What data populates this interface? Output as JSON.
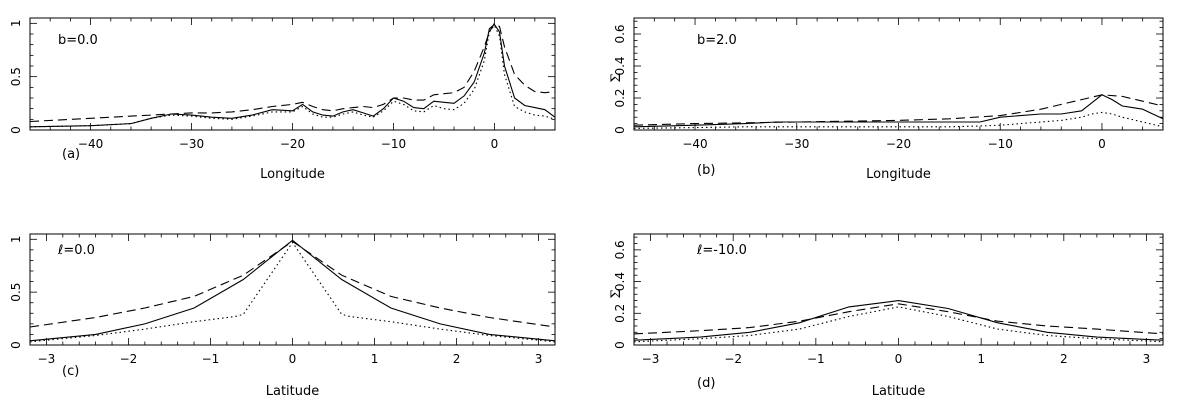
{
  "chart_data": [
    {
      "type": "line",
      "tag": "(a)",
      "param": "b=0.0",
      "xlabel": "Longitude",
      "ylabel": "",
      "xlim": [
        -46,
        6
      ],
      "ylim": [
        0,
        1.05
      ],
      "xticks": [
        -40,
        -30,
        -20,
        -10,
        0
      ],
      "yticks": [
        0,
        0.5,
        1
      ],
      "ytick_labels": [
        "0",
        "0.5",
        "1"
      ],
      "series": [
        {
          "style": "solid",
          "x": [
            -46,
            -40,
            -36,
            -34,
            -32,
            -30,
            -28,
            -26,
            -24,
            -22,
            -20,
            -19,
            -18,
            -17,
            -16,
            -15,
            -14,
            -13,
            -12,
            -11,
            -10,
            -9,
            -8,
            -7,
            -6,
            -5,
            -4,
            -3,
            -2,
            -1,
            -0.5,
            0,
            0.5,
            1,
            2,
            3,
            4,
            5,
            6
          ],
          "y": [
            0.03,
            0.04,
            0.06,
            0.11,
            0.15,
            0.14,
            0.12,
            0.11,
            0.14,
            0.19,
            0.18,
            0.24,
            0.17,
            0.14,
            0.13,
            0.17,
            0.19,
            0.16,
            0.13,
            0.2,
            0.3,
            0.27,
            0.21,
            0.2,
            0.27,
            0.26,
            0.25,
            0.32,
            0.45,
            0.72,
            0.95,
            0.99,
            0.92,
            0.6,
            0.3,
            0.23,
            0.21,
            0.19,
            0.12
          ]
        },
        {
          "style": "dashed",
          "x": [
            -46,
            -40,
            -36,
            -34,
            -32,
            -30,
            -28,
            -26,
            -24,
            -22,
            -20,
            -19,
            -18,
            -17,
            -16,
            -15,
            -14,
            -13,
            -12,
            -11,
            -10,
            -9,
            -8,
            -7,
            -6,
            -5,
            -4,
            -3,
            -2,
            -1,
            -0.5,
            0,
            0.5,
            1,
            2,
            3,
            4,
            5,
            6
          ],
          "y": [
            0.08,
            0.11,
            0.13,
            0.14,
            0.15,
            0.16,
            0.16,
            0.17,
            0.19,
            0.22,
            0.24,
            0.26,
            0.22,
            0.19,
            0.18,
            0.2,
            0.21,
            0.22,
            0.21,
            0.24,
            0.3,
            0.3,
            0.28,
            0.28,
            0.33,
            0.34,
            0.35,
            0.4,
            0.55,
            0.78,
            0.92,
            1.0,
            0.97,
            0.78,
            0.52,
            0.42,
            0.36,
            0.35,
            0.36
          ]
        },
        {
          "style": "dotted",
          "x": [
            -46,
            -40,
            -36,
            -34,
            -32,
            -30,
            -28,
            -26,
            -24,
            -22,
            -20,
            -19,
            -18,
            -17,
            -16,
            -15,
            -14,
            -13,
            -12,
            -11,
            -10,
            -9,
            -8,
            -7,
            -6,
            -5,
            -4,
            -3,
            -2,
            -1,
            -0.5,
            0,
            0.5,
            1,
            2,
            3,
            4,
            5,
            6
          ],
          "y": [
            0.03,
            0.04,
            0.06,
            0.11,
            0.14,
            0.13,
            0.11,
            0.1,
            0.13,
            0.17,
            0.17,
            0.22,
            0.15,
            0.12,
            0.12,
            0.15,
            0.17,
            0.14,
            0.12,
            0.18,
            0.27,
            0.24,
            0.18,
            0.17,
            0.23,
            0.2,
            0.19,
            0.25,
            0.38,
            0.65,
            0.92,
            0.98,
            0.88,
            0.52,
            0.22,
            0.17,
            0.14,
            0.13,
            0.1
          ]
        }
      ]
    },
    {
      "type": "line",
      "tag": "(b)",
      "param": "b=2.0",
      "xlabel": "Longitude",
      "ylabel": "Σ",
      "xlim": [
        -46,
        6
      ],
      "ylim": [
        0,
        0.7
      ],
      "xticks": [
        -40,
        -30,
        -20,
        -10,
        0
      ],
      "yticks": [
        0,
        0.2,
        0.4,
        0.6
      ],
      "ytick_labels": [
        "0",
        "0.2",
        "0.4",
        "0.6"
      ],
      "series": [
        {
          "style": "solid",
          "x": [
            -46,
            -40,
            -35,
            -32,
            -30,
            -25,
            -20,
            -18,
            -15,
            -12,
            -10,
            -8,
            -6,
            -4,
            -2,
            -1,
            0,
            1,
            2,
            3,
            4,
            5,
            6
          ],
          "y": [
            0.02,
            0.03,
            0.04,
            0.05,
            0.05,
            0.05,
            0.05,
            0.05,
            0.05,
            0.05,
            0.08,
            0.09,
            0.1,
            0.1,
            0.12,
            0.17,
            0.22,
            0.19,
            0.15,
            0.14,
            0.13,
            0.1,
            0.07
          ]
        },
        {
          "style": "dashed",
          "x": [
            -46,
            -40,
            -35,
            -30,
            -25,
            -20,
            -15,
            -10,
            -8,
            -6,
            -4,
            -2,
            0,
            2,
            4,
            6
          ],
          "y": [
            0.03,
            0.04,
            0.045,
            0.05,
            0.055,
            0.06,
            0.07,
            0.09,
            0.11,
            0.13,
            0.16,
            0.19,
            0.22,
            0.21,
            0.18,
            0.15
          ]
        },
        {
          "style": "dotted",
          "x": [
            -46,
            -40,
            -35,
            -30,
            -25,
            -20,
            -15,
            -12,
            -10,
            -8,
            -6,
            -4,
            -2,
            -1,
            0,
            1,
            2,
            4,
            6
          ],
          "y": [
            0.01,
            0.015,
            0.02,
            0.02,
            0.02,
            0.02,
            0.02,
            0.025,
            0.03,
            0.04,
            0.05,
            0.06,
            0.08,
            0.1,
            0.11,
            0.1,
            0.08,
            0.05,
            0.02
          ]
        }
      ]
    },
    {
      "type": "line",
      "tag": "(c)",
      "param": "ℓ=0.0",
      "xlabel": "Latitude",
      "ylabel": "",
      "xlim": [
        -3.2,
        3.2
      ],
      "ylim": [
        0,
        1.05
      ],
      "xticks": [
        -3,
        -2,
        -1,
        0,
        1,
        2,
        3
      ],
      "yticks": [
        0,
        0.5,
        1
      ],
      "ytick_labels": [
        "0",
        "0.5",
        "1"
      ],
      "series": [
        {
          "style": "solid",
          "x": [
            -3.2,
            -2.4,
            -1.8,
            -1.2,
            -0.6,
            0,
            0.6,
            1.2,
            1.8,
            2.4,
            3.2
          ],
          "y": [
            0.04,
            0.1,
            0.2,
            0.35,
            0.62,
            0.99,
            0.62,
            0.35,
            0.2,
            0.1,
            0.04
          ]
        },
        {
          "style": "dashed",
          "x": [
            -3.2,
            -2.4,
            -1.8,
            -1.2,
            -0.6,
            0,
            0.6,
            1.2,
            1.8,
            2.4,
            3.2
          ],
          "y": [
            0.17,
            0.26,
            0.35,
            0.46,
            0.66,
            0.98,
            0.66,
            0.46,
            0.35,
            0.26,
            0.17
          ]
        },
        {
          "style": "dotted",
          "x": [
            -3.2,
            -2.4,
            -1.8,
            -1.2,
            -0.7,
            -0.6,
            0,
            0.6,
            0.7,
            1.2,
            1.8,
            2.4,
            3.2
          ],
          "y": [
            0.03,
            0.09,
            0.15,
            0.22,
            0.27,
            0.29,
            0.97,
            0.29,
            0.27,
            0.22,
            0.15,
            0.09,
            0.03
          ]
        }
      ]
    },
    {
      "type": "line",
      "tag": "(d)",
      "param": "ℓ=-10.0",
      "xlabel": "Latitude",
      "ylabel": "Σ",
      "xlim": [
        -3.2,
        3.2
      ],
      "ylim": [
        0,
        0.7
      ],
      "xticks": [
        -3,
        -2,
        -1,
        0,
        1,
        2,
        3
      ],
      "yticks": [
        0,
        0.2,
        0.4,
        0.6
      ],
      "ytick_labels": [
        "0",
        "0.2",
        "0.4",
        "0.6"
      ],
      "series": [
        {
          "style": "solid",
          "x": [
            -3.2,
            -2.4,
            -1.8,
            -1.2,
            -0.6,
            0,
            0.6,
            1.2,
            1.8,
            2.4,
            3.2
          ],
          "y": [
            0.03,
            0.05,
            0.08,
            0.14,
            0.24,
            0.28,
            0.23,
            0.14,
            0.08,
            0.05,
            0.03
          ]
        },
        {
          "style": "dashed",
          "x": [
            -3.2,
            -2.4,
            -1.8,
            -1.2,
            -0.6,
            0,
            0.6,
            1.2,
            1.8,
            2.4,
            3.2
          ],
          "y": [
            0.07,
            0.09,
            0.11,
            0.15,
            0.21,
            0.26,
            0.21,
            0.15,
            0.12,
            0.1,
            0.07
          ]
        },
        {
          "style": "dotted",
          "x": [
            -3.2,
            -2.4,
            -1.8,
            -1.2,
            -0.6,
            0,
            0.6,
            1.2,
            1.8,
            2.4,
            3.2
          ],
          "y": [
            0.02,
            0.04,
            0.06,
            0.1,
            0.18,
            0.24,
            0.18,
            0.1,
            0.06,
            0.04,
            0.02
          ]
        }
      ]
    }
  ]
}
